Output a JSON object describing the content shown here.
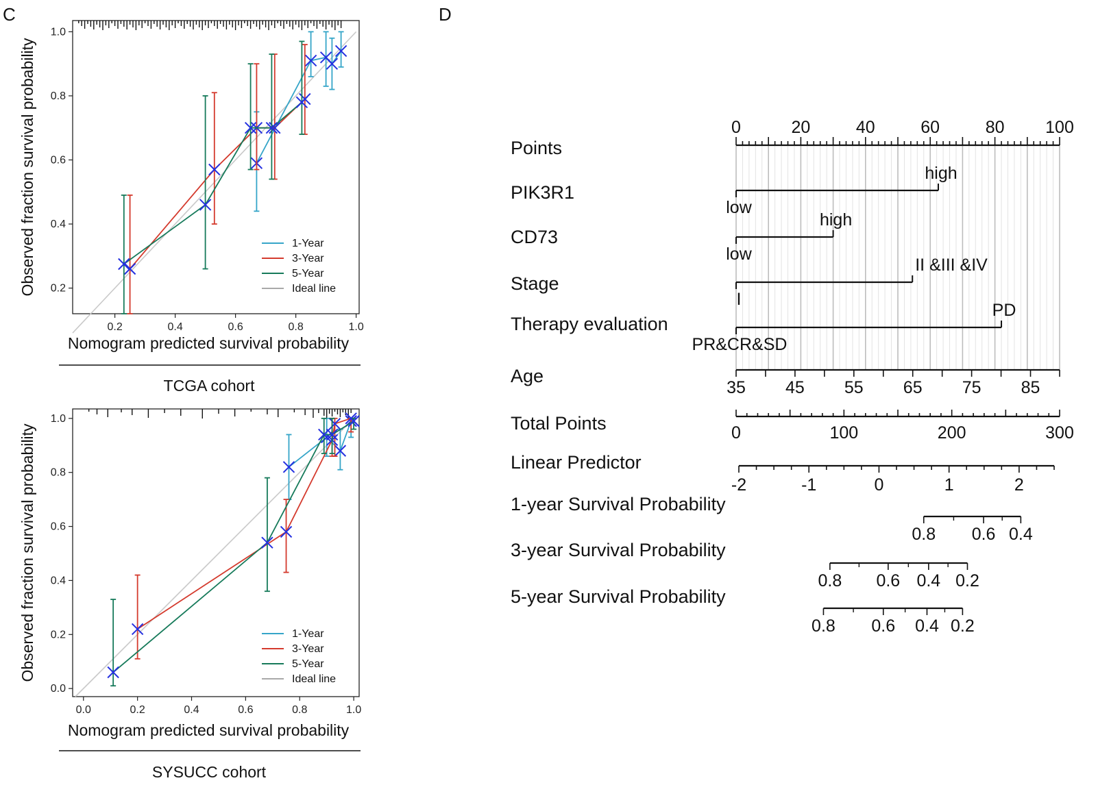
{
  "panel_labels": {
    "left": "C",
    "right": "D"
  },
  "chart_data": [
    {
      "type": "line",
      "name": "calibration-tcga",
      "cohort": "TCGA  cohort",
      "xlabel": "Nomogram predicted survival probability",
      "ylabel": "Observed fraction survival probability",
      "xlim": [
        0.06,
        1.01
      ],
      "ylim": [
        0.12,
        1.035
      ],
      "xticks": [
        "0.2",
        "0.4",
        "0.6",
        "0.8",
        "1.0"
      ],
      "yticks": [
        "0.2",
        "0.4",
        "0.6",
        "0.8",
        "1.0"
      ],
      "legend_position": "bottom-right",
      "legend": [
        "1-Year",
        "3-Year",
        "5-Year",
        "Ideal line"
      ],
      "ideal_line": [
        [
          0.06,
          0.06
        ],
        [
          1.0,
          1.0
        ]
      ],
      "series": [
        {
          "name": "1-Year",
          "color": "#35a5c8",
          "x": [
            0.67,
            0.85,
            0.9,
            0.92,
            0.95
          ],
          "y": [
            0.59,
            0.91,
            0.92,
            0.9,
            0.94
          ],
          "lower": [
            0.44,
            0.86,
            0.83,
            0.82,
            0.89
          ],
          "upper": [
            0.75,
            1.0,
            1.0,
            0.98,
            1.0
          ]
        },
        {
          "name": "3-Year",
          "color": "#d43a2d",
          "x": [
            0.25,
            0.53,
            0.67,
            0.73,
            0.83
          ],
          "y": [
            0.26,
            0.57,
            0.7,
            0.7,
            0.79
          ],
          "lower": [
            0.12,
            0.4,
            0.57,
            0.54,
            0.68
          ],
          "upper": [
            0.49,
            0.81,
            0.9,
            0.93,
            0.96
          ]
        },
        {
          "name": "5-Year",
          "color": "#167a5a",
          "x": [
            0.23,
            0.5,
            0.65,
            0.72,
            0.82
          ],
          "y": [
            0.275,
            0.46,
            0.7,
            0.7,
            0.78
          ],
          "lower": [
            0.12,
            0.26,
            0.57,
            0.54,
            0.68
          ],
          "upper": [
            0.49,
            0.8,
            0.9,
            0.93,
            0.97
          ]
        }
      ],
      "rug_x": [
        0.08,
        0.09,
        0.1,
        0.11,
        0.12,
        0.13,
        0.14,
        0.15,
        0.16,
        0.17,
        0.18,
        0.19,
        0.2,
        0.21,
        0.22,
        0.23,
        0.24,
        0.25,
        0.26,
        0.27,
        0.28,
        0.29,
        0.3,
        0.31,
        0.32,
        0.33,
        0.34,
        0.35,
        0.36,
        0.37,
        0.38,
        0.39,
        0.4,
        0.41,
        0.42,
        0.43,
        0.44,
        0.45,
        0.46,
        0.47,
        0.48,
        0.49,
        0.5,
        0.51,
        0.52,
        0.53,
        0.54,
        0.55,
        0.56,
        0.57,
        0.58,
        0.59,
        0.6,
        0.61,
        0.62,
        0.63,
        0.64,
        0.65,
        0.66,
        0.67,
        0.68,
        0.69,
        0.7,
        0.71,
        0.72,
        0.73,
        0.74,
        0.75,
        0.76,
        0.77,
        0.78,
        0.79,
        0.8,
        0.81,
        0.82,
        0.83,
        0.84,
        0.85,
        0.86,
        0.87,
        0.88,
        0.89,
        0.9,
        0.91,
        0.92,
        0.93,
        0.94,
        0.95
      ]
    },
    {
      "type": "line",
      "name": "calibration-sysucc",
      "cohort": "SYSUCC cohort",
      "xlabel": "Nomogram predicted survival probability",
      "ylabel": "Observed fraction survival probability",
      "xlim": [
        -0.04,
        1.02
      ],
      "ylim": [
        -0.03,
        1.035
      ],
      "xticks": [
        "0.0",
        "0.2",
        "0.4",
        "0.6",
        "0.8",
        "1.0"
      ],
      "yticks": [
        "0.0",
        "0.2",
        "0.4",
        "0.6",
        "0.8",
        "1.0"
      ],
      "legend_position": "bottom-right",
      "legend": [
        "1-Year",
        "3-Year",
        "5-Year",
        "Ideal line"
      ],
      "ideal_line": [
        [
          -0.03,
          -0.03
        ],
        [
          1.0,
          1.0
        ]
      ],
      "series": [
        {
          "name": "1-Year",
          "color": "#35a5c8",
          "x": [
            0.76,
            0.9,
            0.95,
            0.99
          ],
          "y": [
            0.82,
            0.93,
            0.88,
            0.99
          ],
          "lower": [
            0.7,
            0.86,
            0.81,
            0.93
          ],
          "upper": [
            0.94,
            1.0,
            0.96,
            1.0
          ]
        },
        {
          "name": "3-Year",
          "color": "#d43a2d",
          "x": [
            0.2,
            0.75,
            0.92,
            0.93,
            0.99
          ],
          "y": [
            0.22,
            0.58,
            0.92,
            0.98,
            1.0
          ],
          "lower": [
            0.11,
            0.43,
            0.86,
            0.86,
            0.95
          ],
          "upper": [
            0.42,
            0.7,
            1.0,
            1.0,
            1.0
          ]
        },
        {
          "name": "5-Year",
          "color": "#167a5a",
          "x": [
            0.11,
            0.68,
            0.89,
            0.92,
            1.0
          ],
          "y": [
            0.06,
            0.54,
            0.94,
            0.94,
            0.99
          ],
          "lower": [
            0.01,
            0.36,
            0.87,
            0.87,
            0.96
          ],
          "upper": [
            0.33,
            0.78,
            1.0,
            1.0,
            1.0
          ]
        }
      ],
      "rug_x": [
        0.02,
        0.05,
        0.09,
        0.14,
        0.18,
        0.24,
        0.3,
        0.36,
        0.44,
        0.5,
        0.56,
        0.62,
        0.68,
        0.72,
        0.78,
        0.82,
        0.85,
        0.87,
        0.89,
        0.9,
        0.91,
        0.92,
        0.93,
        0.94,
        0.95,
        0.96,
        0.97,
        0.98,
        0.99
      ]
    }
  ],
  "nomogram": {
    "type": "nomogram",
    "rows": [
      {
        "label": "Points",
        "kind": "scale",
        "min": 0,
        "max": 100,
        "labels": [
          "0",
          "20",
          "40",
          "60",
          "80",
          "100"
        ],
        "label_values": [
          0,
          20,
          40,
          60,
          80,
          100
        ],
        "minor_step": 2,
        "major_step": 10
      },
      {
        "label": "PIK3R1",
        "kind": "bar",
        "start_points": 0,
        "end_points": 62.5,
        "low": "low",
        "high": "high"
      },
      {
        "label": "CD73",
        "kind": "bar",
        "start_points": 0,
        "end_points": 30,
        "low": "low",
        "high": "high"
      },
      {
        "label": "Stage",
        "kind": "bar",
        "start_points": 0,
        "end_points": 54.5,
        "low": "I",
        "high": "II &III &IV"
      },
      {
        "label": "Therapy evaluation",
        "kind": "bar",
        "start_points": 0,
        "end_points": 82,
        "low": "PR&CR&SD",
        "high": "PD"
      },
      {
        "label": "Age",
        "kind": "scale",
        "labels": [
          "35",
          "45",
          "55",
          "65",
          "75",
          "85"
        ],
        "label_points": [
          0,
          18.2,
          36.4,
          54.6,
          72.8,
          91
        ],
        "tick_points": [
          0,
          9.1,
          18.2,
          27.3,
          36.4,
          45.5,
          54.6,
          63.7,
          72.8,
          81.9,
          91,
          100
        ]
      },
      {
        "label": "Total Points",
        "kind": "scale",
        "min": 0,
        "max": 300,
        "labels": [
          "0",
          "100",
          "200",
          "300"
        ],
        "label_values": [
          0,
          100,
          200,
          300
        ],
        "minor_step": 10,
        "major_step": 50
      },
      {
        "label": "Linear Predictor",
        "kind": "scale",
        "labels": [
          "-2",
          "-1",
          "0",
          "1",
          "2"
        ],
        "label_values": [
          -2,
          -1,
          0,
          1,
          2
        ],
        "range": [
          -2,
          2.5
        ]
      },
      {
        "label": "1-year Survival Probability",
        "kind": "prob",
        "labels": [
          "0.8",
          "0.6",
          "0.4"
        ],
        "label_points": [
          58,
          76.5,
          88
        ],
        "range_points": [
          58,
          88
        ]
      },
      {
        "label": "3-year Survival Probability",
        "kind": "prob",
        "labels": [
          "0.8",
          "0.6",
          "0.4",
          "0.2"
        ],
        "label_points": [
          29,
          47,
          59.5,
          71.5
        ],
        "range_points": [
          29,
          71.5
        ]
      },
      {
        "label": "5-year Survival Probability",
        "kind": "prob",
        "labels": [
          "0.8",
          "0.6",
          "0.4",
          "0.2"
        ],
        "label_points": [
          27,
          45.5,
          59,
          70
        ],
        "range_points": [
          27,
          70
        ]
      }
    ]
  }
}
